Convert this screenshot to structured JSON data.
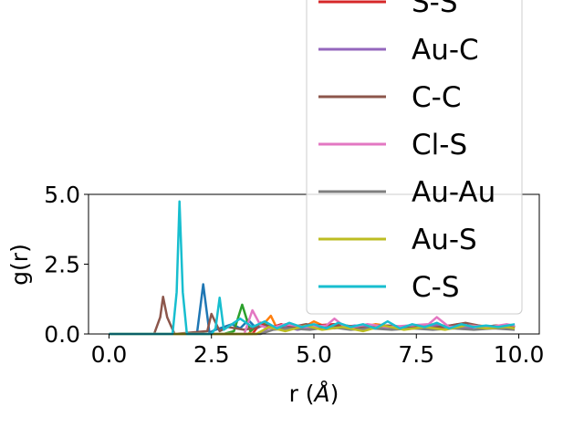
{
  "chart_data": {
    "type": "line",
    "title": "",
    "xlabel": "r (",
    "xlabel_unit": "Å",
    "xlabel_close": ")",
    "ylabel": "g(r)",
    "xlim": [
      -0.5,
      10.5
    ],
    "ylim": [
      0,
      5.0
    ],
    "xticks": [
      0.0,
      2.5,
      5.0,
      7.5,
      10.0
    ],
    "xtick_labels": [
      "0.0",
      "2.5",
      "5.0",
      "7.5",
      "10.0"
    ],
    "yticks": [
      0.0,
      2.5,
      5.0
    ],
    "ytick_labels": [
      "0.0",
      "2.5",
      "5.0"
    ],
    "grid": false,
    "legend_position": "upper right, extending above the axes",
    "series": [
      {
        "name": "",
        "color": "#1f77b4",
        "x": [
          0,
          2.0,
          2.15,
          2.3,
          2.45,
          2.6,
          3.0,
          3.2,
          3.4,
          3.6,
          3.8,
          4.0,
          4.5,
          5.0,
          5.5,
          6.0,
          6.5,
          7.0,
          7.5,
          8.0,
          8.5,
          9.0,
          9.5,
          9.9
        ],
        "y": [
          0,
          0,
          0.05,
          1.78,
          0.05,
          0.15,
          0.35,
          0.2,
          0.5,
          0.2,
          0.35,
          0.2,
          0.3,
          0.2,
          0.35,
          0.2,
          0.3,
          0.2,
          0.3,
          0.25,
          0.3,
          0.25,
          0.3,
          0.25
        ]
      },
      {
        "name": "",
        "color": "#ff7f0e",
        "x": [
          0,
          3.4,
          3.6,
          3.8,
          3.95,
          4.1,
          4.4,
          4.7,
          5.0,
          5.3,
          5.6,
          6.0,
          6.5,
          7.0,
          7.5,
          8.0,
          8.5,
          9.0,
          9.5,
          9.9
        ],
        "y": [
          0,
          0,
          0.3,
          0.4,
          0.65,
          0.2,
          0.35,
          0.2,
          0.45,
          0.25,
          0.3,
          0.2,
          0.35,
          0.25,
          0.3,
          0.35,
          0.2,
          0.3,
          0.25,
          0.3
        ]
      },
      {
        "name": "",
        "color": "#2ca02c",
        "x": [
          0,
          2.8,
          3.05,
          3.25,
          3.45,
          3.7,
          4.0,
          4.5,
          5.0,
          5.5,
          6.0,
          6.5,
          7.0,
          7.5,
          8.0,
          8.5,
          9.0,
          9.5,
          9.9
        ],
        "y": [
          0,
          0,
          0.1,
          1.05,
          0.1,
          0.4,
          0.2,
          0.3,
          0.25,
          0.35,
          0.2,
          0.3,
          0.25,
          0.3,
          0.25,
          0.3,
          0.25,
          0.3,
          0.25
        ]
      },
      {
        "name": "S-S",
        "color": "#d62728",
        "x": [
          0,
          3.5,
          3.7,
          3.9,
          4.2,
          4.6,
          5.0,
          5.5,
          6.0,
          6.5,
          7.0,
          7.5,
          8.0,
          8.5,
          9.0,
          9.5,
          9.9
        ],
        "y": [
          0,
          0,
          0.4,
          0.2,
          0.35,
          0.2,
          0.3,
          0.35,
          0.2,
          0.3,
          0.25,
          0.3,
          0.2,
          0.35,
          0.25,
          0.3,
          0.25
        ]
      },
      {
        "name": "Au-C",
        "color": "#9467bd",
        "x": [
          0,
          3.6,
          3.9,
          4.2,
          4.6,
          5.0,
          5.5,
          6.0,
          6.5,
          7.0,
          7.5,
          8.0,
          8.5,
          9.0,
          9.5,
          9.9
        ],
        "y": [
          0,
          0,
          0.2,
          0.3,
          0.15,
          0.25,
          0.2,
          0.3,
          0.2,
          0.25,
          0.2,
          0.3,
          0.2,
          0.25,
          0.2,
          0.25
        ]
      },
      {
        "name": "C-C",
        "color": "#8c564b",
        "x": [
          0,
          1.1,
          1.25,
          1.32,
          1.42,
          1.6,
          2.4,
          2.5,
          2.7,
          2.9,
          3.3,
          3.8,
          4.3,
          4.8,
          5.3,
          5.8,
          6.3,
          6.8,
          7.3,
          7.8,
          8.3,
          8.7,
          9.2,
          9.6,
          9.9
        ],
        "y": [
          0,
          0,
          0.6,
          1.33,
          0.6,
          0,
          0.1,
          0.72,
          0.1,
          0.25,
          0.15,
          0.3,
          0.2,
          0.35,
          0.25,
          0.3,
          0.2,
          0.3,
          0.25,
          0.2,
          0.3,
          0.4,
          0.25,
          0.3,
          0.25
        ]
      },
      {
        "name": "Cl-S",
        "color": "#e377c2",
        "x": [
          0,
          3.3,
          3.5,
          3.7,
          3.9,
          4.3,
          4.8,
          5.3,
          5.5,
          5.8,
          6.3,
          6.8,
          7.3,
          7.8,
          8.0,
          8.3,
          8.8,
          9.3,
          9.7,
          9.9
        ],
        "y": [
          0,
          0,
          0.85,
          0.3,
          0.2,
          0.35,
          0.25,
          0.3,
          0.55,
          0.2,
          0.35,
          0.25,
          0.3,
          0.35,
          0.6,
          0.25,
          0.3,
          0.25,
          0.35,
          0.3
        ]
      },
      {
        "name": "Au-Au",
        "color": "#7f7f7f",
        "x": [
          0,
          3.7,
          4.0,
          4.4,
          4.9,
          5.4,
          5.9,
          6.4,
          6.9,
          7.4,
          7.9,
          8.4,
          8.9,
          9.4,
          9.9
        ],
        "y": [
          0,
          0,
          0.15,
          0.2,
          0.15,
          0.25,
          0.15,
          0.2,
          0.15,
          0.2,
          0.15,
          0.2,
          0.15,
          0.2,
          0.15
        ]
      },
      {
        "name": "Au-S",
        "color": "#bcbd22",
        "x": [
          0,
          3.6,
          3.9,
          4.3,
          4.8,
          5.2,
          5.7,
          6.2,
          6.7,
          7.2,
          7.7,
          8.2,
          8.7,
          9.2,
          9.7,
          9.9
        ],
        "y": [
          0,
          0,
          0.25,
          0.1,
          0.3,
          0.15,
          0.25,
          0.1,
          0.3,
          0.15,
          0.25,
          0.15,
          0.3,
          0.2,
          0.25,
          0.2
        ]
      },
      {
        "name": "C-S",
        "color": "#17becf",
        "x": [
          0,
          1.55,
          1.65,
          1.72,
          1.8,
          1.9,
          2.5,
          2.6,
          2.7,
          2.8,
          3.0,
          3.2,
          3.5,
          3.8,
          4.1,
          4.4,
          4.7,
          5.0,
          5.3,
          5.6,
          5.9,
          6.2,
          6.5,
          6.8,
          7.1,
          7.4,
          7.7,
          8.0,
          8.3,
          8.6,
          8.9,
          9.2,
          9.5,
          9.9
        ],
        "y": [
          0,
          0,
          1.5,
          4.75,
          1.5,
          0,
          0,
          0.2,
          1.3,
          0.15,
          0.35,
          0.55,
          0.25,
          0.45,
          0.2,
          0.4,
          0.25,
          0.35,
          0.2,
          0.4,
          0.25,
          0.35,
          0.2,
          0.45,
          0.2,
          0.35,
          0.25,
          0.4,
          0.2,
          0.35,
          0.25,
          0.3,
          0.25,
          0.35
        ]
      }
    ]
  }
}
